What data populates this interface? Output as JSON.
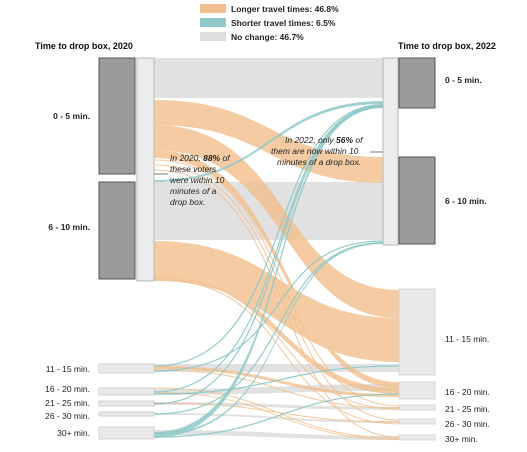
{
  "legend": [
    {
      "label": "Longer travel times: 46.8%",
      "color": "#f2c08f"
    },
    {
      "label": "Shorter travel times: 6.5%",
      "color": "#8fc9c9"
    },
    {
      "label": "No change: 46.7%",
      "color": "#dedede"
    }
  ],
  "left_title": "Time to drop box, 2020",
  "right_title": "Time to drop box, 2022",
  "left_nodes": [
    "0 - 5 min.",
    "6 - 10 min.",
    "11 - 15 min.",
    "16 - 20 min.",
    "21 - 25 min.",
    "26 - 30 min.",
    "30+ min."
  ],
  "right_nodes": [
    "0 - 5 min.",
    "6 - 10 min.",
    "11 - 15 min.",
    "16 - 20 min.",
    "21 - 25 min.",
    "26 - 30 min.",
    "30+ min."
  ],
  "note_2020": [
    "In 2020, ",
    "88%",
    " of",
    "these voters",
    "were within 10",
    "minutes of a",
    "drop box."
  ],
  "note_2022": [
    "In 2022, only ",
    "56%",
    " of",
    "them are now within 10",
    "minutes of a drop box."
  ],
  "colors": {
    "longer": "#f2c08f",
    "shorter": "#8fc9c9",
    "same": "#dedede",
    "node_dark": "#9b9b9b",
    "node_light": "#e9e9e9"
  }
}
